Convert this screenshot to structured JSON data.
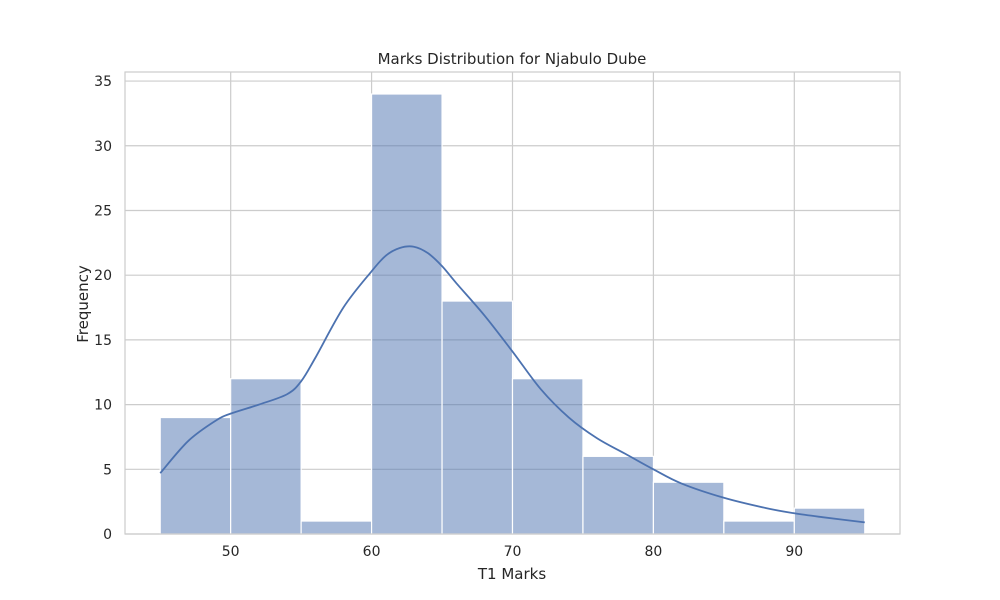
{
  "chart_data": {
    "type": "bar",
    "title": "Marks Distribution for Njabulo Dube",
    "xlabel": "T1 Marks",
    "ylabel": "Frequency",
    "xlim": [
      42.5,
      97.5
    ],
    "ylim": [
      0,
      35.7
    ],
    "x_ticks": [
      50,
      60,
      70,
      80,
      90
    ],
    "y_ticks": [
      0,
      5,
      10,
      15,
      20,
      25,
      30,
      35
    ],
    "bins": [
      {
        "start": 45,
        "end": 50,
        "count": 9
      },
      {
        "start": 50,
        "end": 55,
        "count": 12
      },
      {
        "start": 55,
        "end": 60,
        "count": 1
      },
      {
        "start": 60,
        "end": 65,
        "count": 34
      },
      {
        "start": 65,
        "end": 70,
        "count": 18
      },
      {
        "start": 70,
        "end": 75,
        "count": 12
      },
      {
        "start": 75,
        "end": 80,
        "count": 6
      },
      {
        "start": 80,
        "end": 85,
        "count": 4
      },
      {
        "start": 85,
        "end": 90,
        "count": 1
      },
      {
        "start": 90,
        "end": 95,
        "count": 2
      }
    ],
    "kde": {
      "x": [
        45,
        47,
        49,
        50,
        52,
        54,
        55,
        56,
        58,
        60,
        61,
        62,
        63,
        64,
        65,
        66,
        68,
        70,
        72,
        74,
        76,
        78,
        80,
        82,
        85,
        88,
        90,
        92,
        95
      ],
      "y": [
        4.7,
        7.2,
        8.8,
        9.3,
        10.0,
        10.8,
        11.8,
        13.6,
        17.5,
        20.3,
        21.5,
        22.1,
        22.2,
        21.7,
        20.7,
        19.4,
        16.9,
        14.1,
        11.2,
        9.0,
        7.4,
        6.2,
        5.0,
        3.9,
        2.8,
        2.0,
        1.6,
        1.3,
        0.9
      ]
    },
    "grid": true,
    "bar_color": "#4c72b0",
    "bar_opacity": 0.5,
    "line_color": "#4c72b0"
  }
}
